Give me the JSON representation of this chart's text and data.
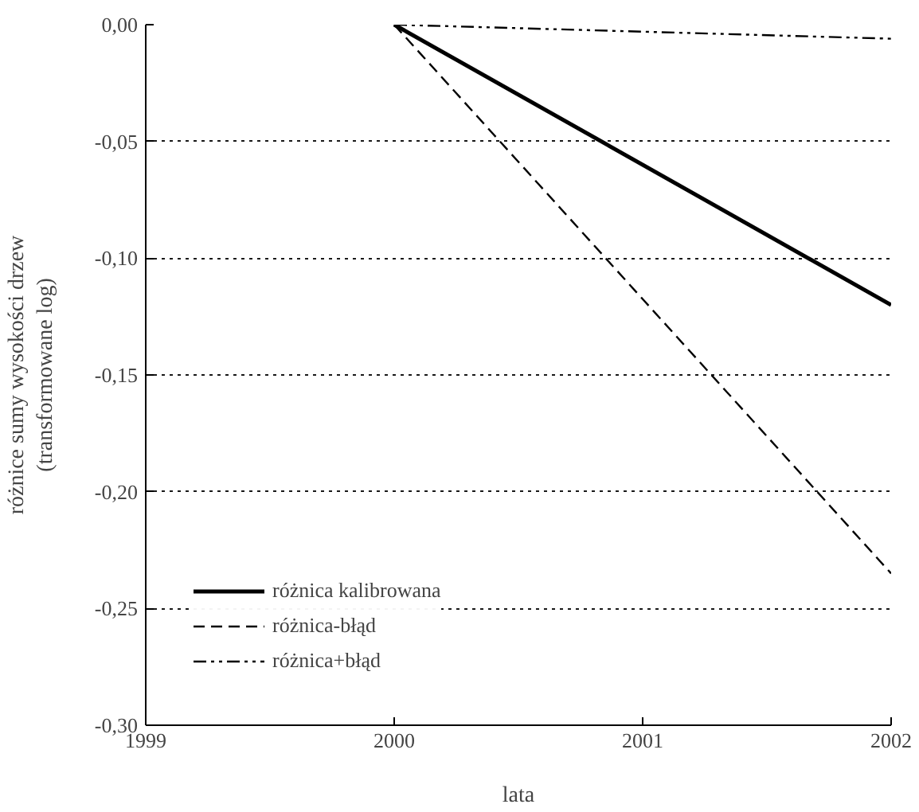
{
  "chart_data": {
    "type": "line",
    "xlabel": "lata",
    "ylabel": "różnice sumy wysokości drzew\n(transformowane log)",
    "x": [
      2000,
      2002
    ],
    "series": [
      {
        "name": "różnica kalibrowana",
        "color": "#000000",
        "values": [
          0,
          -0.12
        ],
        "line_style": "solid"
      },
      {
        "name": "różnica-błąd",
        "color": "#000000",
        "values": [
          0,
          -0.235
        ],
        "line_style": "dashed"
      },
      {
        "name": "różnica+błąd",
        "color": "#000000",
        "values": [
          0,
          -0.006
        ],
        "line_style": "dashdot"
      }
    ],
    "xlim": [
      1999,
      2002
    ],
    "xticks": [
      1999,
      2000,
      2001,
      2002
    ],
    "ylim": [
      -0.3,
      0
    ],
    "yticks": [
      {
        "value": 0,
        "label": "0,00"
      },
      {
        "value": -0.05,
        "label": "-0,05"
      },
      {
        "value": -0.1,
        "label": "-0,10"
      },
      {
        "value": -0.15,
        "label": "-0,15"
      },
      {
        "value": -0.2,
        "label": "-0,20"
      },
      {
        "value": -0.25,
        "label": "-0,25"
      },
      {
        "value": -0.3,
        "label": "-0,30"
      }
    ],
    "grid": "y",
    "legend": "bottom left",
    "marker": "none"
  }
}
